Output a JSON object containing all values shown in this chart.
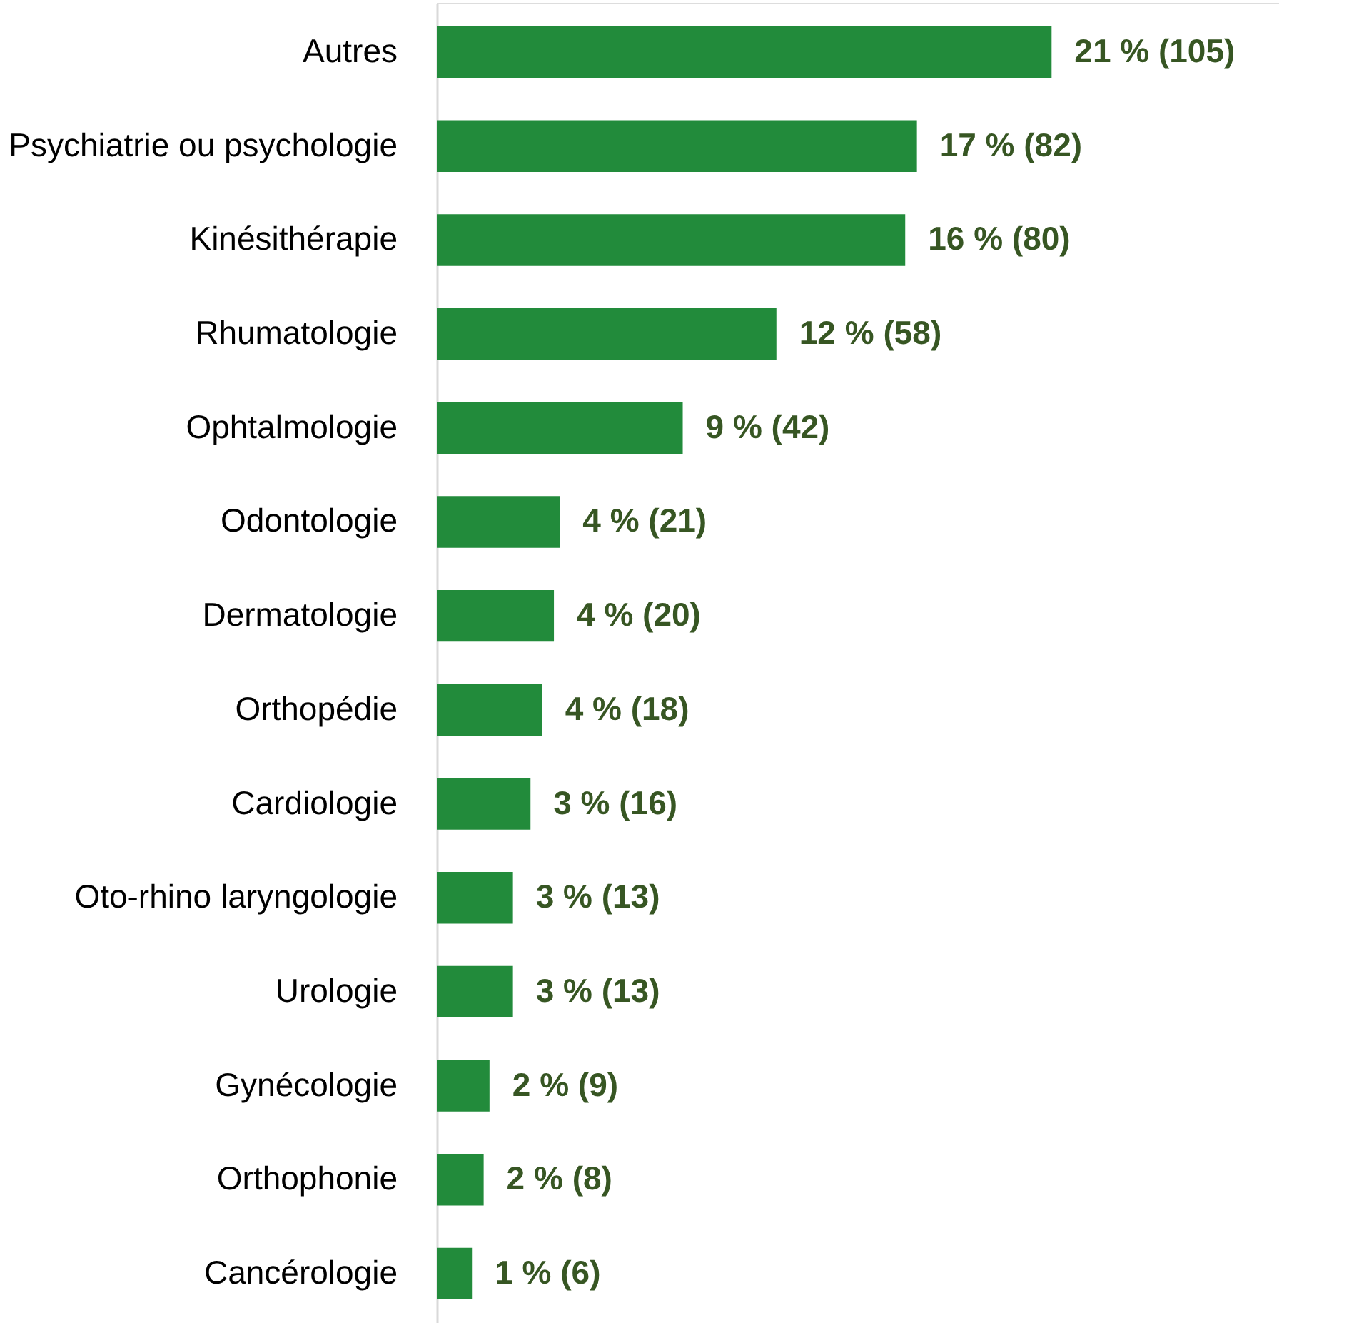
{
  "chart_data": {
    "type": "bar",
    "orientation": "horizontal",
    "categories": [
      "Autres",
      "Psychiatrie ou psychologie",
      "Kinésithérapie",
      "Rhumatologie",
      "Ophtalmologie",
      "Odontologie",
      "Dermatologie",
      "Orthopédie",
      "Cardiologie",
      "Oto-rhino laryngologie",
      "Urologie",
      "Gynécologie",
      "Orthophonie",
      "Cancérologie"
    ],
    "values": [
      105,
      82,
      80,
      58,
      42,
      21,
      20,
      18,
      16,
      13,
      13,
      9,
      8,
      6
    ],
    "value_labels": [
      "21 % (105)",
      "17 % (82)",
      "16 % (80)",
      "12 % (58)",
      "9 % (42)",
      "4 % (21)",
      "4 % (20)",
      "4 % (18)",
      "3 % (16)",
      "3 % (13)",
      "3 % (13)",
      "2 % (9)",
      "2 % (8)",
      "1 % (6)"
    ],
    "color": "#228b3b",
    "grid": false
  }
}
